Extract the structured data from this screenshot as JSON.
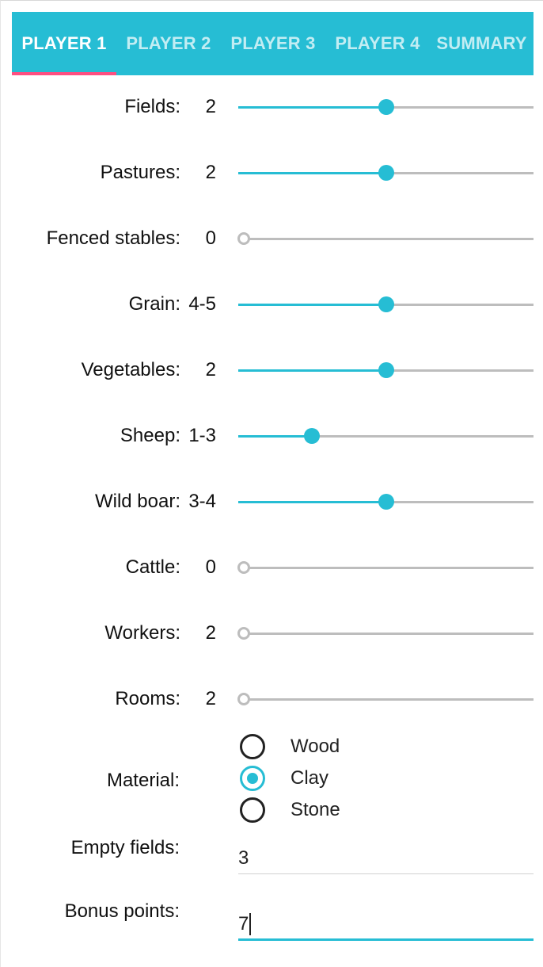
{
  "tabs": [
    {
      "label": "PLAYER 1",
      "active": true
    },
    {
      "label": "PLAYER 2",
      "active": false
    },
    {
      "label": "PLAYER 3",
      "active": false
    },
    {
      "label": "PLAYER 4",
      "active": false
    },
    {
      "label": "SUMMARY",
      "active": false
    }
  ],
  "colors": {
    "accent": "#26bdd4",
    "tab_indicator": "#ff4f81",
    "track": "#bdbdbd",
    "text": "#111111"
  },
  "sliders": [
    {
      "label": "Fields:",
      "value": "2",
      "level": 0.5
    },
    {
      "label": "Pastures:",
      "value": "2",
      "level": 0.5
    },
    {
      "label": "Fenced stables:",
      "value": "0",
      "level": 0
    },
    {
      "label": "Grain:",
      "value": "4-5",
      "level": 0.5
    },
    {
      "label": "Vegetables:",
      "value": "2",
      "level": 0.5
    },
    {
      "label": "Sheep:",
      "value": "1-3",
      "level": 0.25
    },
    {
      "label": "Wild boar:",
      "value": "3-4",
      "level": 0.5
    },
    {
      "label": "Cattle:",
      "value": "0",
      "level": 0
    },
    {
      "label": "Workers:",
      "value": "2",
      "level": 0
    },
    {
      "label": "Rooms:",
      "value": "2",
      "level": 0
    }
  ],
  "material": {
    "label": "Material:",
    "options": [
      {
        "label": "Wood",
        "checked": false
      },
      {
        "label": "Clay",
        "checked": true
      },
      {
        "label": "Stone",
        "checked": false
      }
    ]
  },
  "empty_fields": {
    "label": "Empty fields:",
    "value": "3"
  },
  "bonus_points": {
    "label": "Bonus points:",
    "value": "7"
  }
}
